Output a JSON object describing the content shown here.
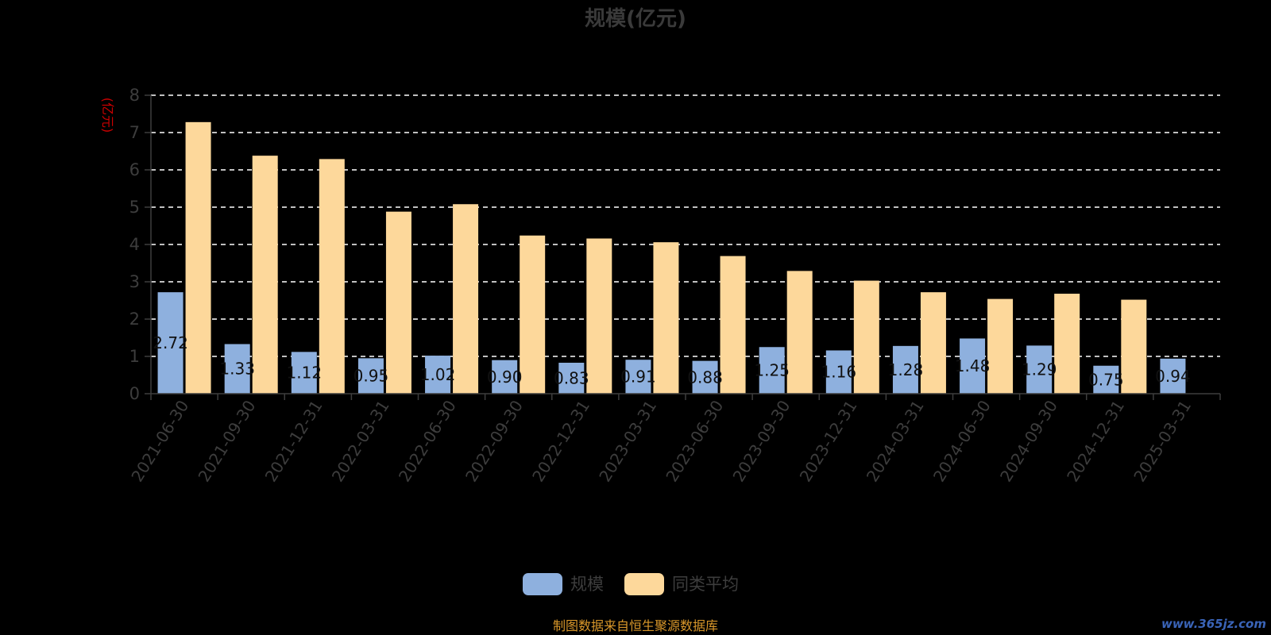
{
  "chart_data": {
    "type": "bar",
    "title": "规模(亿元)",
    "ylabel": "(亿元)",
    "xlabel": "",
    "ylim": [
      0,
      8
    ],
    "yticks": [
      0,
      1,
      2,
      3,
      4,
      5,
      6,
      7,
      8
    ],
    "grid": true,
    "legend_position": "bottom",
    "categories": [
      "2021-06-30",
      "2021-09-30",
      "2021-12-31",
      "2022-03-31",
      "2022-06-30",
      "2022-09-30",
      "2022-12-31",
      "2023-03-31",
      "2023-06-30",
      "2023-09-30",
      "2023-12-31",
      "2024-03-31",
      "2024-06-30",
      "2024-09-30",
      "2024-12-31",
      "2025-03-31"
    ],
    "series": [
      {
        "name": "规模",
        "color": "#8eb0de",
        "values": [
          2.72,
          1.33,
          1.12,
          0.95,
          1.02,
          0.9,
          0.83,
          0.91,
          0.88,
          1.25,
          1.16,
          1.28,
          1.48,
          1.29,
          0.75,
          0.94
        ],
        "value_labels": [
          "2.72",
          "1.33",
          "1.12",
          "0.95",
          "1.02",
          "0.90",
          "0.83",
          "0.91",
          "0.88",
          "1.25",
          "1.16",
          "1.28",
          "1.48",
          "1.29",
          "0.75",
          "0.94"
        ]
      },
      {
        "name": "同类平均",
        "color": "#fdd89b",
        "values": [
          7.28,
          6.38,
          6.29,
          4.88,
          5.08,
          4.24,
          4.16,
          4.06,
          3.69,
          3.29,
          3.03,
          2.72,
          2.54,
          2.68,
          2.52,
          null
        ]
      }
    ]
  },
  "source_note": "制图数据来自恒生聚源数据库",
  "watermark": "www.365jz.com",
  "colors": {
    "background": "#000000",
    "title": "#3a3a3a",
    "axis_text": "#3d3d3d",
    "unit_text": "#cc0000",
    "grid": "#ffffff",
    "data_label": "#111111",
    "source_text": "#d9972a",
    "watermark": "#3a64b8"
  }
}
